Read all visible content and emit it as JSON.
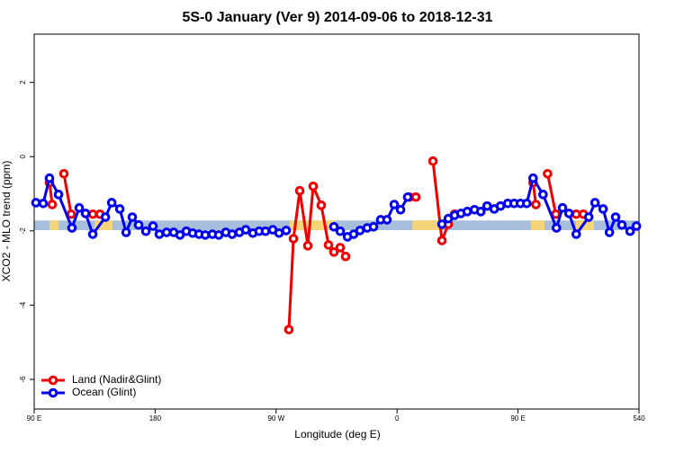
{
  "chart_data": {
    "type": "line",
    "title": "5S-0 January (Ver 9)   2014-09-06 to 2018-12-31",
    "x_label": "Longitude (deg E)",
    "y_label": "XCO2 - MLO trend (ppm)",
    "xlim": [
      90,
      540
    ],
    "ylim": [
      -6.8,
      3.3
    ],
    "xticks": [
      {
        "value": 90,
        "label": "90 E"
      },
      180,
      {
        "value": 270,
        "label": "90 W"
      },
      {
        "value": 360,
        "label": "0"
      },
      {
        "value": 450,
        "label": "90 E"
      },
      540
    ],
    "yticks": [
      -6,
      -4,
      -2,
      0,
      2
    ],
    "legend": "bottom-left",
    "band": {
      "ylim": [
        -1.98,
        -1.72
      ],
      "color": "#a8bedd",
      "highlight_color": "#f5d57a",
      "highlights": [
        [
          101.4,
          108
        ],
        [
          134.9,
          148.3
        ],
        [
          280.2,
          313.7
        ],
        [
          371.4,
          392.7
        ],
        [
          459.6,
          469.7
        ],
        [
          493.1,
          506.5
        ]
      ]
    },
    "series": [
      {
        "name": "Land (Nadir&Glint)",
        "color": "#ee0000",
        "x": [
          101.4,
          103.4,
          null,
          112.1,
          117.5,
          null,
          133.6,
          138.9,
          null,
          279.5,
          282.9,
          287.6,
          293.6,
          297.6,
          303.6,
          309.0,
          313.0,
          317.7,
          321.7,
          null,
          369.3,
          374.0,
          null,
          386.7,
          393.4,
          398.1,
          402.8,
          null,
          461.2,
          463.3,
          null,
          472.0,
          478.1,
          null,
          493.3,
          498.6
        ],
        "values": [
          -0.7,
          -1.29,
          null,
          -0.46,
          -1.55,
          null,
          -1.55,
          -1.55,
          null,
          -4.66,
          -2.21,
          -0.92,
          -2.4,
          -0.8,
          -1.31,
          -2.38,
          -2.57,
          -2.45,
          -2.69,
          null,
          -1.09,
          -1.09,
          null,
          -0.12,
          -2.26,
          -1.82,
          -1.55,
          null,
          -0.7,
          -1.29,
          null,
          -0.46,
          -1.55,
          null,
          -1.55,
          -1.55
        ]
      },
      {
        "name": "Ocean (Glint)",
        "color": "#0000ee",
        "x": [
          91.3,
          96.7,
          101.4,
          108.1,
          118.1,
          123.5,
          128.2,
          133.6,
          143.0,
          147.7,
          153.7,
          158.4,
          163.0,
          167.7,
          173.1,
          178.4,
          183.1,
          188.5,
          193.8,
          198.5,
          203.2,
          207.9,
          212.6,
          217.3,
          222.6,
          227.3,
          232.6,
          237.3,
          242.7,
          247.4,
          252.7,
          257.4,
          262.1,
          267.5,
          272.2,
          277.5,
          null,
          313.0,
          317.7,
          323.1,
          327.7,
          332.4,
          337.8,
          342.5,
          347.8,
          352.5,
          357.9,
          362.6,
          367.9,
          null,
          393.4,
          398.1,
          402.8,
          407.5,
          412.2,
          417.6,
          422.3,
          427.0,
          432.3,
          437.0,
          442.4,
          447.1,
          451.8,
          456.5,
          461.2,
          468.6,
          478.6,
          483.1,
          487.9,
          493.3,
          502.6,
          507.3,
          513.3,
          518.0,
          522.6,
          527.3,
          533.4,
          538.1
        ],
        "values": [
          -1.24,
          -1.26,
          -0.58,
          -1.02,
          -1.92,
          -1.38,
          -1.53,
          -2.09,
          -1.63,
          -1.24,
          -1.41,
          -2.04,
          -1.63,
          -1.84,
          -2.01,
          -1.87,
          -2.09,
          -2.04,
          -2.04,
          -2.11,
          -2.01,
          -2.06,
          -2.09,
          -2.11,
          -2.09,
          -2.11,
          -2.04,
          -2.09,
          -2.04,
          -1.97,
          -2.06,
          -2.01,
          -2.01,
          -1.97,
          -2.06,
          -1.99,
          null,
          -1.89,
          -2.01,
          -2.16,
          -2.09,
          -1.99,
          -1.92,
          -1.89,
          -1.7,
          -1.7,
          -1.29,
          -1.43,
          -1.09,
          null,
          -1.82,
          -1.67,
          -1.58,
          -1.53,
          -1.48,
          -1.43,
          -1.48,
          -1.33,
          -1.41,
          -1.33,
          -1.26,
          -1.26,
          -1.26,
          -1.26,
          -0.58,
          -1.02,
          -1.92,
          -1.38,
          -1.53,
          -2.09,
          -1.63,
          -1.24,
          -1.41,
          -2.04,
          -1.63,
          -1.84,
          -2.01,
          -1.87
        ]
      }
    ]
  }
}
